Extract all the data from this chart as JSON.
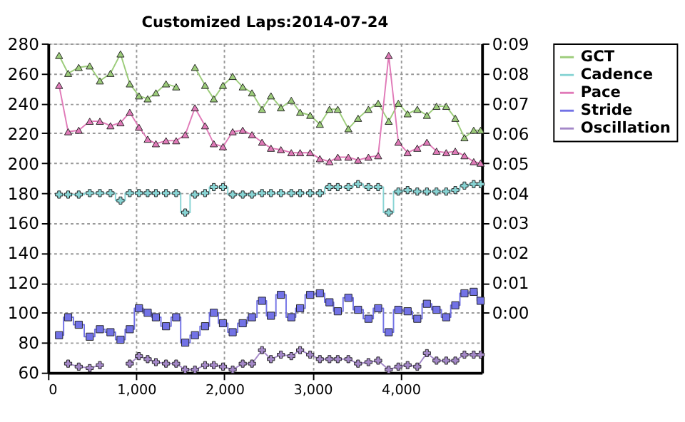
{
  "chart_data": {
    "type": "line",
    "title": "Customized Laps:2014-07-24",
    "x": [
      125,
      228,
      348,
      473,
      588,
      708,
      822,
      927,
      1031,
      1130,
      1223,
      1338,
      1453,
      1556,
      1666,
      1781,
      1880,
      1984,
      2094,
      2208,
      2313,
      2427,
      2528,
      2641,
      2759,
      2859,
      2973,
      3083,
      3192,
      3286,
      3406,
      3516,
      3634,
      3744,
      3864,
      3973,
      4078,
      4188,
      4297,
      4406,
      4516,
      4619,
      4723,
      4828,
      4906
    ],
    "series": [
      {
        "name": "GCT",
        "color": "#9ccc7a",
        "marker": "triangle",
        "values": [
          272,
          260,
          264,
          265,
          255,
          260,
          273,
          253,
          245,
          243,
          247,
          253,
          251,
          null,
          264,
          252,
          243,
          252,
          258,
          251,
          247,
          236,
          245,
          237,
          242,
          234,
          232,
          226,
          236,
          236,
          223,
          230,
          236,
          240,
          228,
          240,
          233,
          236,
          232,
          238,
          238,
          230,
          217,
          222,
          222
        ]
      },
      {
        "name": "Cadence",
        "color": "#88d4d4",
        "type": "step",
        "marker": "cross",
        "values": [
          179,
          179,
          179,
          180,
          180,
          180,
          175,
          180,
          180,
          180,
          180,
          180,
          180,
          167,
          179,
          180,
          184,
          184,
          179,
          179,
          179,
          180,
          180,
          180,
          180,
          180,
          180,
          180,
          184,
          184,
          184,
          186,
          184,
          184,
          167,
          181,
          182,
          181,
          181,
          181,
          181,
          182,
          185,
          186,
          186
        ]
      },
      {
        "name": "Pace",
        "color": "#e07ab8",
        "marker": "triangle",
        "values": [
          252,
          221,
          222,
          228,
          228,
          225,
          227,
          234,
          224,
          216,
          213,
          215,
          215,
          219,
          237,
          225,
          213,
          211,
          221,
          222,
          219,
          214,
          210,
          209,
          207,
          207,
          207,
          203,
          201,
          204,
          204,
          202,
          204,
          205,
          272,
          214,
          207,
          210,
          214,
          208,
          207,
          208,
          205,
          201,
          200
        ]
      },
      {
        "name": "Stride",
        "color": "#7272e6",
        "type": "step",
        "marker": "square",
        "values": [
          85,
          97,
          92,
          84,
          89,
          87,
          82,
          89,
          103,
          100,
          97,
          91,
          97,
          80,
          85,
          91,
          100,
          93,
          87,
          93,
          97,
          108,
          98,
          112,
          97,
          103,
          112,
          113,
          107,
          101,
          110,
          102,
          96,
          103,
          87,
          102,
          101,
          96,
          106,
          102,
          97,
          105,
          113,
          114,
          108
        ]
      },
      {
        "name": "Oscillation",
        "color": "#a488c8",
        "marker": "cross",
        "values": [
          null,
          66,
          64,
          63,
          65,
          null,
          null,
          66,
          71,
          69,
          67,
          66,
          66,
          62,
          62,
          65,
          65,
          64,
          62,
          66,
          66,
          75,
          69,
          72,
          71,
          75,
          72,
          69,
          69,
          69,
          69,
          66,
          67,
          68,
          62,
          64,
          65,
          64,
          73,
          68,
          68,
          68,
          72,
          72,
          72
        ]
      }
    ],
    "xlim": [
      0,
      4920
    ],
    "xticks": [
      0,
      {
        "value": 1000,
        "label": "1,000"
      },
      {
        "value": 2000,
        "label": "2,000"
      },
      {
        "value": 3000,
        "label": "3,000"
      },
      {
        "value": 4000,
        "label": "4,000"
      }
    ],
    "ylim": [
      60,
      280
    ],
    "yticks": [
      60,
      80,
      100,
      120,
      140,
      160,
      180,
      200,
      220,
      240,
      260,
      280
    ],
    "y2lim": [
      -2,
      9
    ],
    "y2ticks": [
      {
        "value": 0,
        "label": "0:00"
      },
      {
        "value": 1,
        "label": "0:01"
      },
      {
        "value": 2,
        "label": "0:02"
      },
      {
        "value": 3,
        "label": "0:03"
      },
      {
        "value": 4,
        "label": "0:04"
      },
      {
        "value": 5,
        "label": "0:05"
      },
      {
        "value": 6,
        "label": "0:06"
      },
      {
        "value": 7,
        "label": "0:07"
      },
      {
        "value": 8,
        "label": "0:08"
      },
      {
        "value": 9,
        "label": "0:09"
      }
    ],
    "grid": true,
    "legend": "right"
  }
}
